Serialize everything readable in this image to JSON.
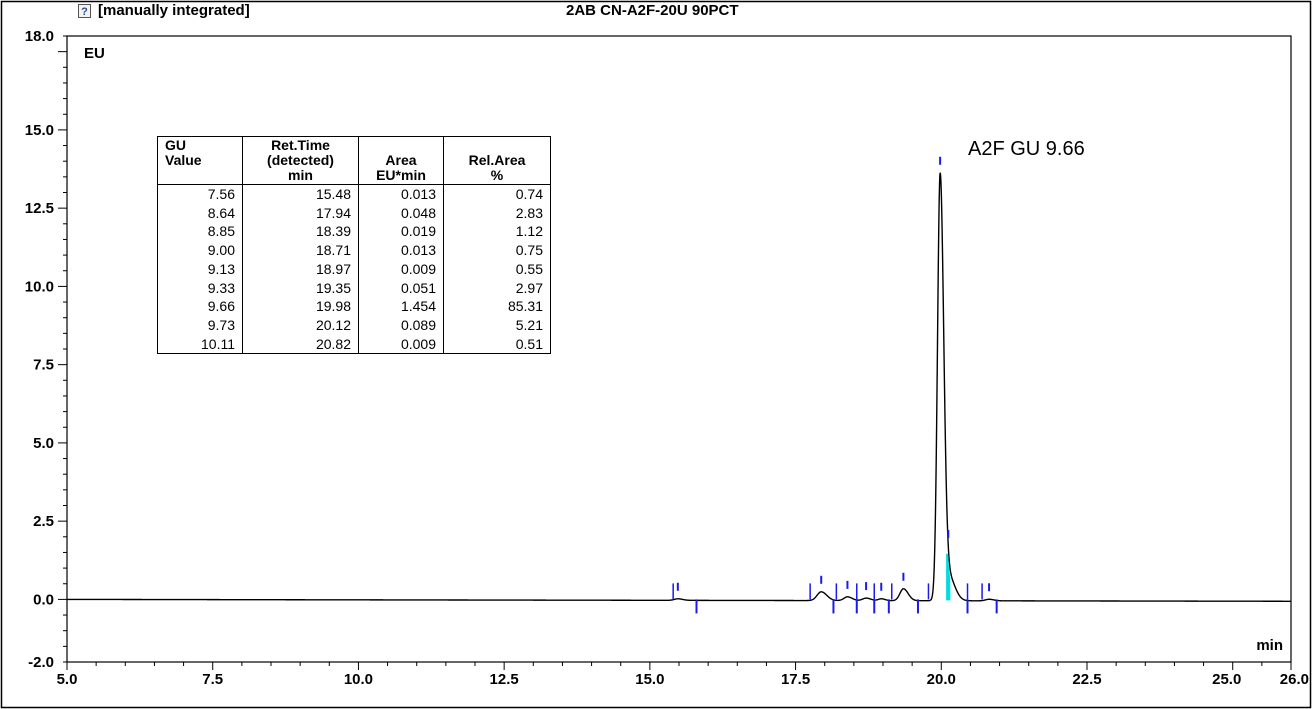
{
  "header": {
    "status": "[manually integrated]",
    "sample_name": "2AB CN-A2F-20U 90PCT"
  },
  "annotation": "A2F GU 9.66",
  "table": {
    "headers": [
      [
        "GU",
        "Value"
      ],
      [
        "Ret.Time",
        "(detected)",
        "min"
      ],
      [
        "Area",
        "EU*min"
      ],
      [
        "Rel.Area",
        "%"
      ]
    ],
    "rows": [
      [
        "7.56",
        "15.48",
        "0.013",
        "0.74"
      ],
      [
        "8.64",
        "17.94",
        "0.048",
        "2.83"
      ],
      [
        "8.85",
        "18.39",
        "0.019",
        "1.12"
      ],
      [
        "9.00",
        "18.71",
        "0.013",
        "0.75"
      ],
      [
        "9.13",
        "18.97",
        "0.009",
        "0.55"
      ],
      [
        "9.33",
        "19.35",
        "0.051",
        "2.97"
      ],
      [
        "9.66",
        "19.98",
        "1.454",
        "85.31"
      ],
      [
        "9.73",
        "20.12",
        "0.089",
        "5.21"
      ],
      [
        "10.11",
        "20.82",
        "0.009",
        "0.51"
      ]
    ]
  },
  "chart_data": {
    "type": "line",
    "title": "2AB CN-A2F-20U 90PCT",
    "xlabel": "min",
    "ylabel": "EU",
    "xlim": [
      5.0,
      26.0
    ],
    "ylim": [
      -2.0,
      18.0
    ],
    "x_ticks": [
      "5.0",
      "7.5",
      "10.0",
      "12.5",
      "15.0",
      "17.5",
      "20.0",
      "22.5",
      "25.0",
      "26.0"
    ],
    "y_ticks": [
      "-2.0",
      "0.0",
      "2.5",
      "5.0",
      "7.5",
      "10.0",
      "12.5",
      "15.0",
      "18.0"
    ],
    "grid": false,
    "baseline": 0.0,
    "peaks": [
      {
        "rt": 15.48,
        "height": 0.05,
        "width": 0.06
      },
      {
        "rt": 17.94,
        "height": 0.28,
        "width": 0.07
      },
      {
        "rt": 18.39,
        "height": 0.12,
        "width": 0.06
      },
      {
        "rt": 18.71,
        "height": 0.08,
        "width": 0.06
      },
      {
        "rt": 18.97,
        "height": 0.06,
        "width": 0.05
      },
      {
        "rt": 19.35,
        "height": 0.38,
        "width": 0.06
      },
      {
        "rt": 19.98,
        "height": 13.5,
        "width": 0.045
      },
      {
        "rt": 20.12,
        "height": 0.8,
        "width": 0.08
      },
      {
        "rt": 20.82,
        "height": 0.05,
        "width": 0.06
      }
    ],
    "integration_start_markers": [
      15.4,
      17.75,
      18.2,
      18.55,
      18.85,
      19.15,
      19.78,
      20.45,
      20.7
    ],
    "integration_end_markers": [
      15.8,
      18.15,
      18.55,
      18.85,
      19.1,
      19.6,
      20.45,
      20.95
    ],
    "apex_markers": [
      15.48,
      17.94,
      18.39,
      18.71,
      18.97,
      19.35,
      19.98,
      20.12,
      20.82
    ],
    "colors": {
      "trace": "#000000",
      "marker": "#1a1aee",
      "highlight_fill": "#00dddd"
    }
  }
}
